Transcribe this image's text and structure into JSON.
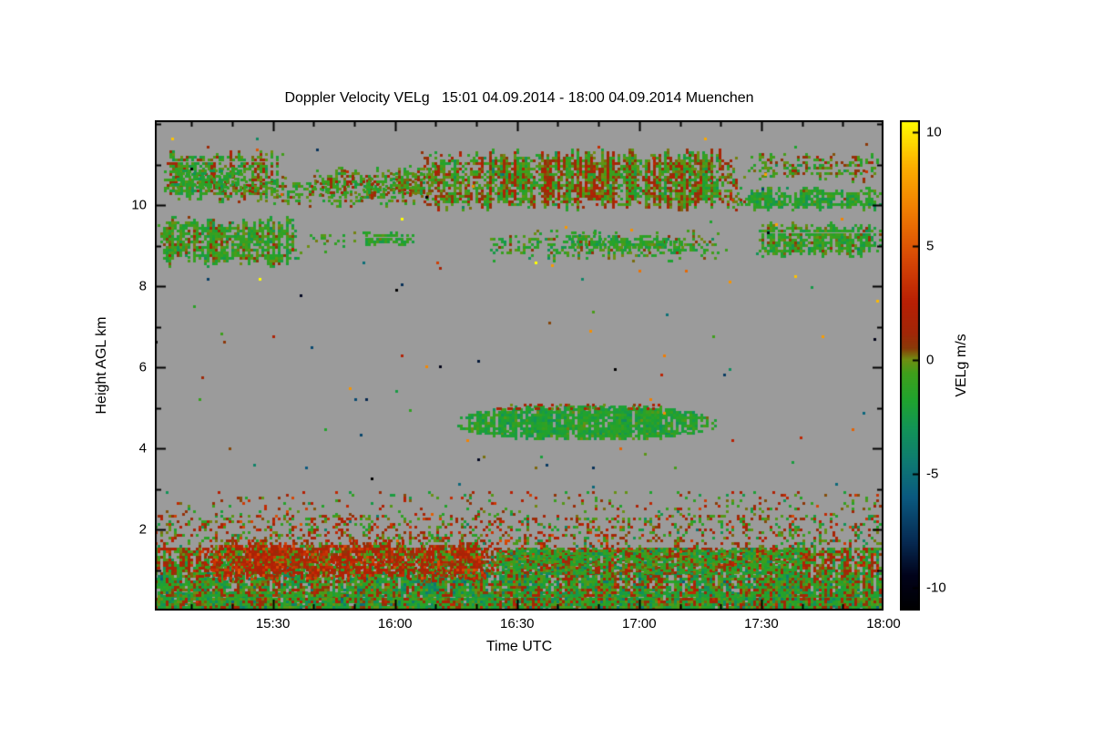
{
  "chart_data": {
    "type": "heatmap",
    "title": "Doppler Velocity VELg   15:01 04.09.2014 - 18:00 04.09.2014 Muenchen",
    "xlabel": "Time UTC",
    "ylabel": "Height AGL km",
    "colorbar_label": "VELg m/s",
    "x_range": [
      "15:01",
      "18:00"
    ],
    "x_ticks": [
      "15:30",
      "16:00",
      "16:30",
      "17:00",
      "17:30",
      "18:00"
    ],
    "x_minor_step_min": 10,
    "y_range_km": [
      0,
      12.1
    ],
    "y_ticks": [
      2,
      4,
      6,
      8,
      10
    ],
    "y_minor_step_km": 1,
    "value_range": [
      -11,
      10.5
    ],
    "colorbar_ticks": [
      -10,
      -5,
      0,
      5,
      10
    ],
    "plot_bg": "#9b9b9b",
    "colormap": [
      {
        "v": -11,
        "c": "#000000"
      },
      {
        "v": -9.5,
        "c": "#01021a"
      },
      {
        "v": -8,
        "c": "#062a52"
      },
      {
        "v": -6,
        "c": "#0a5a80"
      },
      {
        "v": -4.5,
        "c": "#0e7a72"
      },
      {
        "v": -3,
        "c": "#129457"
      },
      {
        "v": -1.8,
        "c": "#1fa32f"
      },
      {
        "v": -0.6,
        "c": "#3f9f1b"
      },
      {
        "v": 0.0,
        "c": "#6f8f12"
      },
      {
        "v": 0.5,
        "c": "#8a3a08"
      },
      {
        "v": 1.2,
        "c": "#a22607"
      },
      {
        "v": 2.5,
        "c": "#b81f04"
      },
      {
        "v": 4.5,
        "c": "#d84a05"
      },
      {
        "v": 6.5,
        "c": "#f07c02"
      },
      {
        "v": 8.5,
        "c": "#fcb000"
      },
      {
        "v": 10.5,
        "c": "#ffff00"
      }
    ],
    "features": [
      {
        "name": "cirrus-top-left",
        "t0": "15:02",
        "t1": "15:33",
        "h0": 10.05,
        "h1": 11.35,
        "density": 0.6,
        "v": -0.5,
        "v_std": 1.0,
        "col_var": 0.8,
        "edge": 0.25
      },
      {
        "name": "cirrus-top-left-green",
        "t0": "15:05",
        "t1": "15:24",
        "h0": 10.35,
        "h1": 10.95,
        "density": 0.5,
        "v": -1.6,
        "v_std": 0.7,
        "edge": 0.1
      },
      {
        "name": "cirrus-streak-1530",
        "t0": "15:24",
        "t1": "16:08",
        "h0": 9.95,
        "h1": 10.7,
        "density": 0.4,
        "v": -0.6,
        "v_std": 0.9,
        "col_var": 0.6,
        "edge": 0.2
      },
      {
        "name": "cirrus-pre-main",
        "t0": "15:40",
        "t1": "16:08",
        "h0": 10.15,
        "h1": 10.95,
        "density": 0.5,
        "v": -0.4,
        "v_std": 1.0,
        "col_var": 0.9,
        "edge": 0.2
      },
      {
        "name": "cirrus-main",
        "t0": "16:05",
        "t1": "17:26",
        "h0": 9.85,
        "h1": 11.4,
        "density": 0.8,
        "v": -0.2,
        "v_std": 1.0,
        "col_var": 1.4,
        "edge": 0.3
      },
      {
        "name": "cirrus-main-west-ext",
        "t0": "15:58",
        "t1": "16:10",
        "h0": 10.2,
        "h1": 11.0,
        "density": 0.5,
        "v": -0.4,
        "v_std": 1.0,
        "edge": 0.2
      },
      {
        "name": "cirrus-right-patchy",
        "t0": "17:26",
        "t1": "18:00",
        "h0": 10.55,
        "h1": 11.3,
        "density": 0.45,
        "v": -0.5,
        "v_std": 1.1,
        "col_var": 1.0,
        "edge": 0.25
      },
      {
        "name": "cirrus-right-green",
        "t0": "17:24",
        "t1": "18:00",
        "h0": 9.85,
        "h1": 10.45,
        "density": 0.8,
        "v": -1.6,
        "v_std": 0.8,
        "edge": 0.15
      },
      {
        "name": "band2-left",
        "t0": "15:01",
        "t1": "15:37",
        "h0": 8.45,
        "h1": 9.75,
        "density": 0.8,
        "v": -1.0,
        "v_std": 1.0,
        "col_var": 0.7,
        "edge": 0.3
      },
      {
        "name": "band2-left-tail",
        "t0": "15:37",
        "t1": "15:52",
        "h0": 8.95,
        "h1": 9.35,
        "density": 0.3,
        "v": -1.0,
        "v_std": 0.9,
        "edge": 0.15
      },
      {
        "name": "band2-small-blob",
        "t0": "15:52",
        "t1": "16:05",
        "h0": 9.0,
        "h1": 9.35,
        "density": 0.85,
        "v": -1.4,
        "v_std": 0.6,
        "edge": 0.1
      },
      {
        "name": "band2-mid",
        "t0": "16:22",
        "t1": "17:22",
        "h0": 8.6,
        "h1": 9.4,
        "density": 0.45,
        "v": -1.0,
        "v_std": 1.0,
        "edge": 0.3
      },
      {
        "name": "band2-mid-dense",
        "t0": "16:40",
        "t1": "17:12",
        "h0": 8.85,
        "h1": 9.35,
        "density": 0.6,
        "v": -1.3,
        "v_std": 0.8,
        "edge": 0.15
      },
      {
        "name": "band2-right",
        "t0": "17:28",
        "t1": "18:00",
        "h0": 8.7,
        "h1": 9.6,
        "density": 0.8,
        "v": -1.2,
        "v_std": 0.9,
        "edge": 0.2
      },
      {
        "name": "midlevel-lens",
        "t0": "16:14",
        "t1": "17:20",
        "h0": 4.2,
        "h1": 5.05,
        "density": 0.92,
        "v": -1.7,
        "v_std": 0.7,
        "shape": "lens",
        "edge": 0.1
      },
      {
        "name": "midlevel-lens-top-red",
        "t0": "16:25",
        "t1": "17:05",
        "h0": 4.95,
        "h1": 5.1,
        "density": 0.3,
        "v": 1.2,
        "v_std": 0.8
      },
      {
        "name": "bl-surface-green",
        "t0": "15:01",
        "t1": "18:00",
        "h0": 0.0,
        "h1": 0.45,
        "density": 0.9,
        "v": -1.6,
        "v_std": 1.0
      },
      {
        "name": "boundary-layer-low",
        "t0": "15:01",
        "t1": "18:00",
        "h0": 0.05,
        "h1": 0.95,
        "density": 0.95,
        "v": -0.9,
        "v_std": 1.7,
        "col_var": 1.0
      },
      {
        "name": "boundary-layer-mid",
        "t0": "15:01",
        "t1": "18:00",
        "h0": 0.95,
        "h1": 1.55,
        "density": 0.8,
        "v": 0.2,
        "v_std": 1.8,
        "col_var": 0.8
      },
      {
        "name": "bl-red-patch",
        "t0": "15:12",
        "t1": "16:25",
        "h0": 0.7,
        "h1": 1.75,
        "density": 0.8,
        "v": 1.8,
        "v_std": 1.4,
        "edge": 0.2
      },
      {
        "name": "bl-green-patch",
        "t0": "16:25",
        "t1": "17:40",
        "h0": 0.9,
        "h1": 1.5,
        "density": 0.6,
        "v": -1.2,
        "v_std": 1.2
      },
      {
        "name": "bl-speckle-1",
        "t0": "15:01",
        "t1": "18:00",
        "h0": 1.55,
        "h1": 2.35,
        "density": 0.28,
        "v": 0.4,
        "v_std": 1.8
      },
      {
        "name": "bl-speckle-2",
        "t0": "15:01",
        "t1": "18:00",
        "h0": 2.35,
        "h1": 2.95,
        "density": 0.09,
        "v": 0.4,
        "v_std": 1.8
      },
      {
        "name": "sparse-noise",
        "t0": "15:01",
        "t1": "18:00",
        "h0": 2.95,
        "h1": 12.0,
        "density": 0.0035,
        "v": 0,
        "v_std": 5.5
      }
    ]
  }
}
